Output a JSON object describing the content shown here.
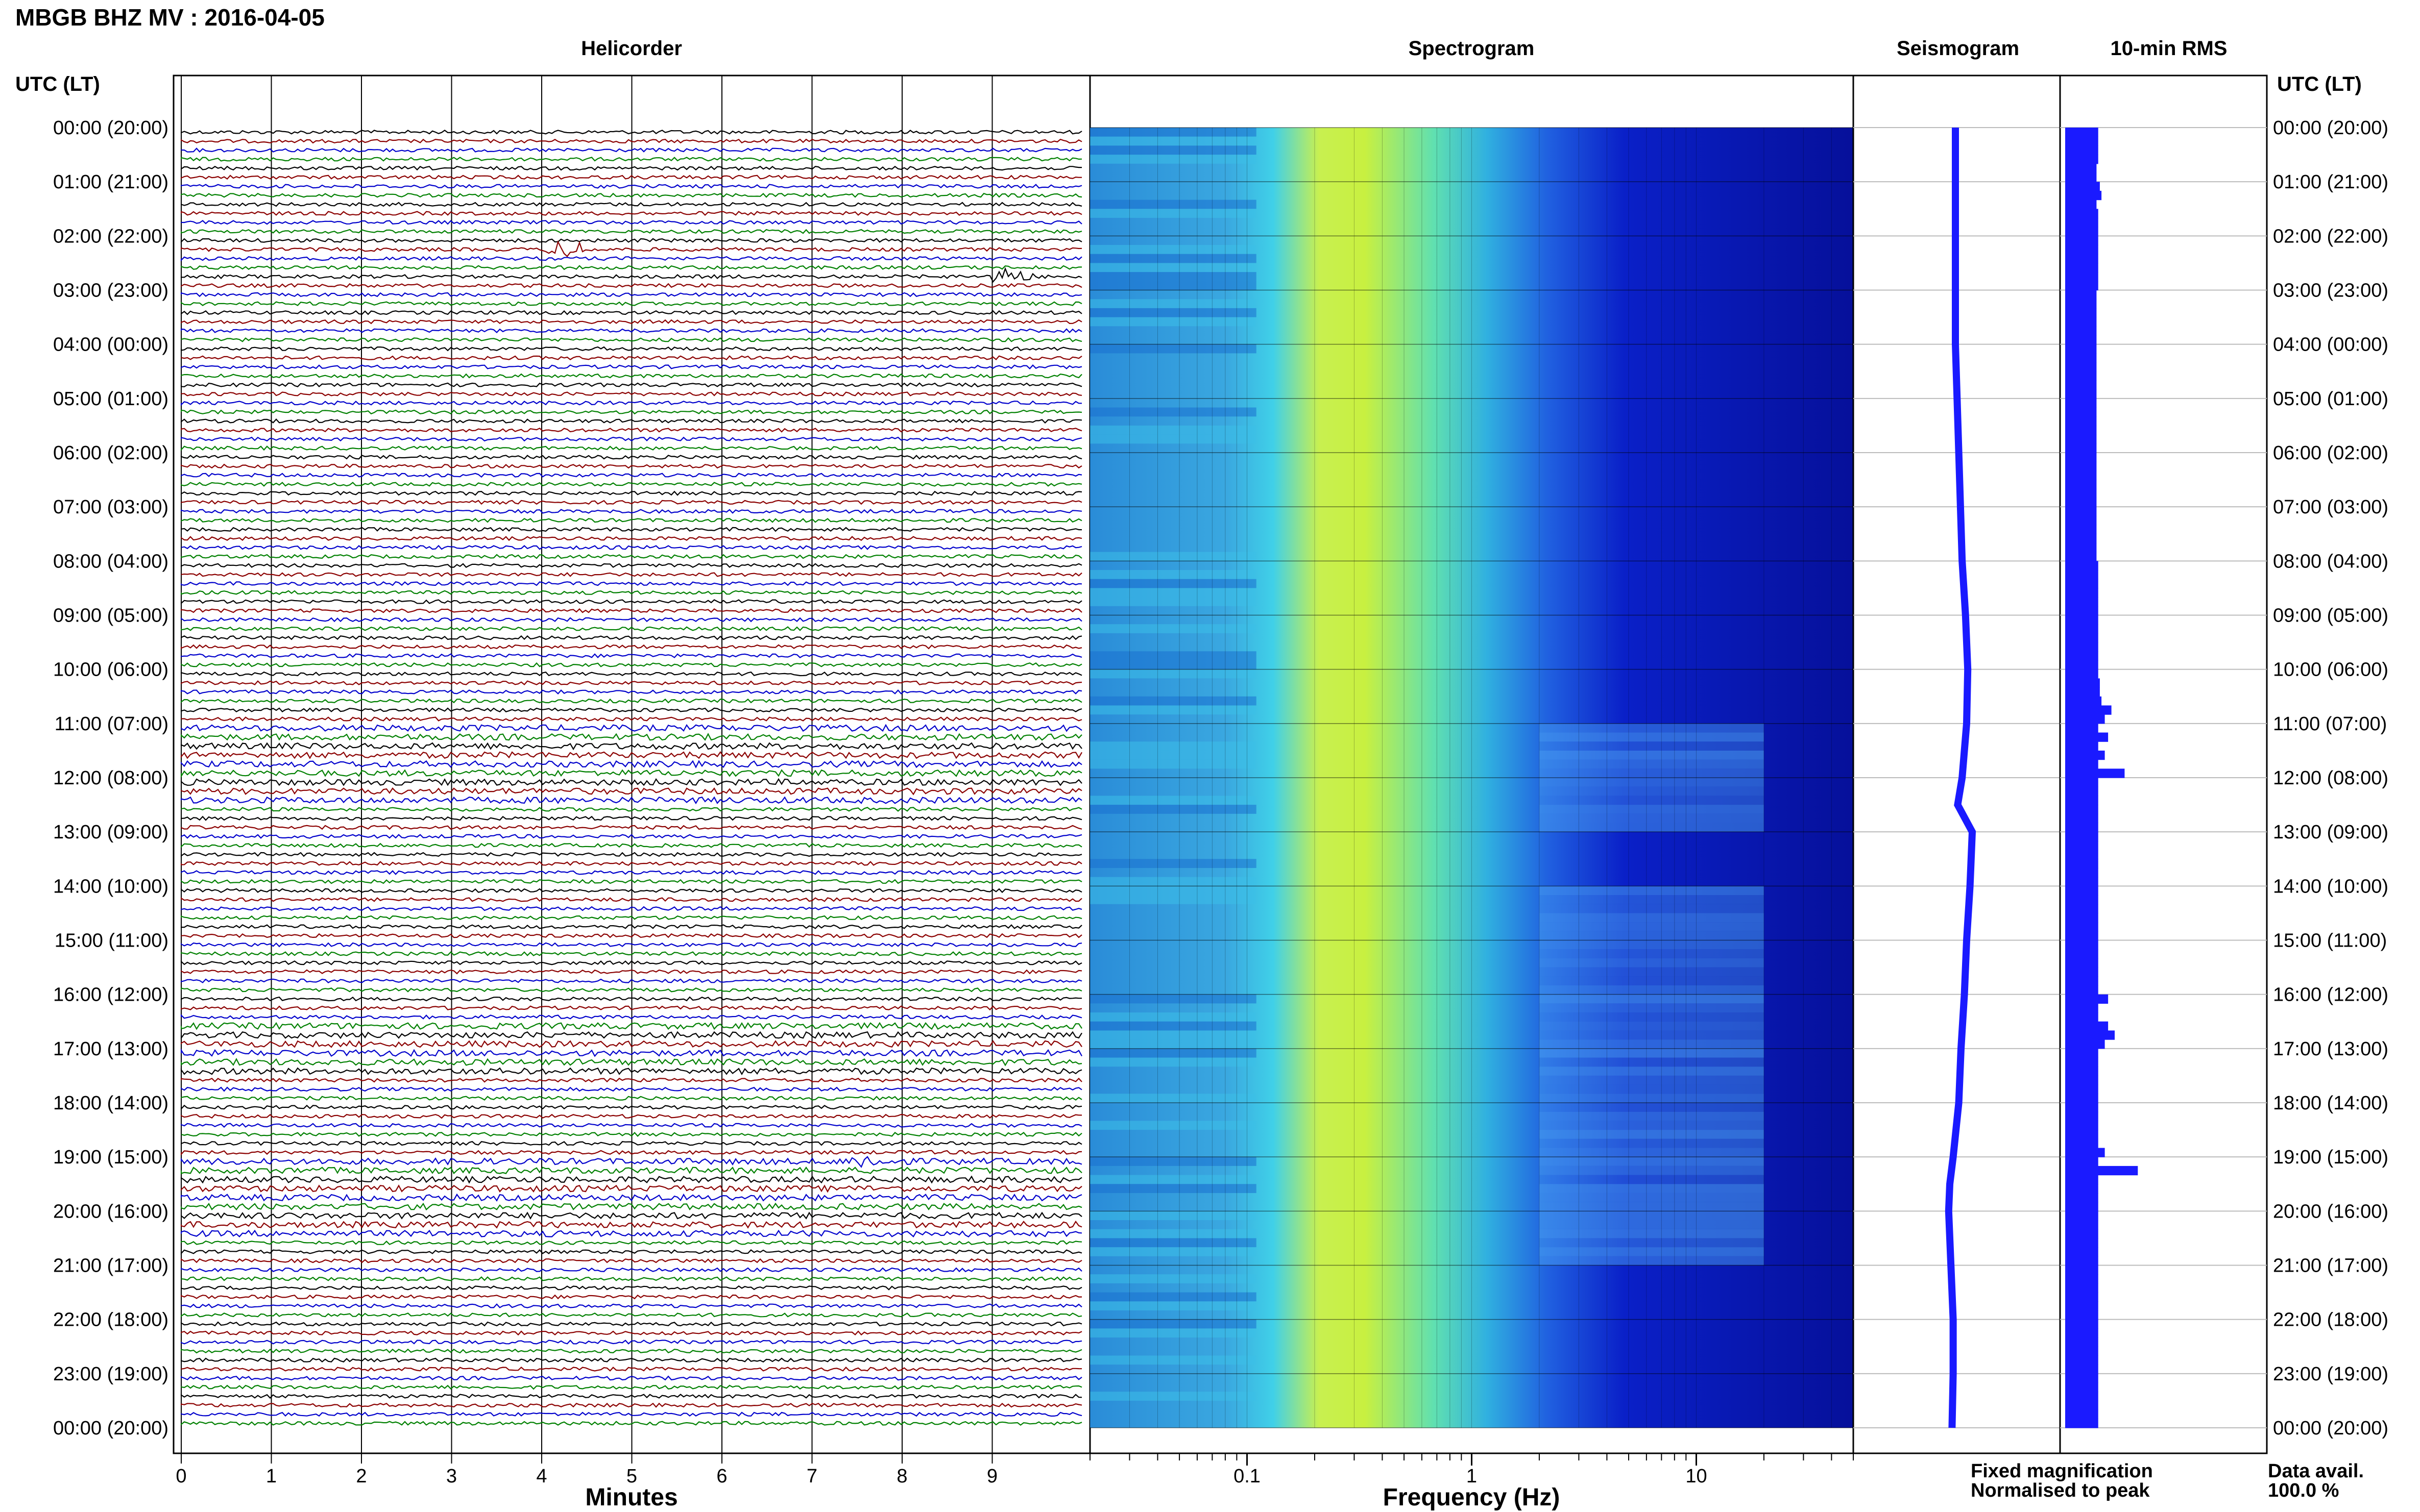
{
  "header": {
    "title": "MBGB BHZ MV : 2016-04-05",
    "left_axis_label": "UTC (LT)",
    "right_axis_label": "UTC (LT)"
  },
  "panels": {
    "helicorder": "Helicorder",
    "spectrogram": "Spectrogram",
    "seismogram": "Seismogram",
    "rms": "10-min RMS"
  },
  "footer": {
    "minutes_label": "Minutes",
    "frequency_label": "Frequency (Hz)",
    "legend_fixed": "Fixed magnification",
    "legend_normalised": "Normalised to peak",
    "data_avail_label": "Data avail.",
    "data_avail_value": "100.0 %"
  },
  "colors": {
    "trace_cycle": [
      "#000000",
      "#8b0000",
      "#0000cc",
      "#008000"
    ],
    "fixed": "#1a1aff",
    "normalised": "#ff0000",
    "seismogram": "#1a1aff",
    "rms_bar": "#1a1aff"
  },
  "chart_data": [
    {
      "type": "line",
      "name": "Helicorder",
      "x_ticks": [
        0,
        1,
        2,
        3,
        4,
        5,
        6,
        7,
        8,
        9
      ],
      "xlim": [
        0,
        10
      ],
      "xlabel": "Minutes",
      "trace_count": 144,
      "events": [
        {
          "hour": 2.1,
          "minute": 4.3,
          "amplitude": 3
        },
        {
          "hour": 2.6,
          "minute": 9.2,
          "amplitude": 3
        },
        {
          "hour": 19.0,
          "minute": 7.6,
          "amplitude": 1
        }
      ],
      "time_labels": [
        "00:00 (20:00)",
        "01:00 (21:00)",
        "02:00 (22:00)",
        "03:00 (23:00)",
        "04:00 (00:00)",
        "05:00 (01:00)",
        "06:00 (02:00)",
        "07:00 (03:00)",
        "08:00 (04:00)",
        "09:00 (05:00)",
        "10:00 (06:00)",
        "11:00 (07:00)",
        "12:00 (08:00)",
        "13:00 (09:00)",
        "14:00 (10:00)",
        "15:00 (11:00)",
        "16:00 (12:00)",
        "17:00 (13:00)",
        "18:00 (14:00)",
        "19:00 (15:00)",
        "20:00 (16:00)",
        "21:00 (17:00)",
        "22:00 (18:00)",
        "23:00 (19:00)",
        "00:00 (20:00)"
      ]
    },
    {
      "type": "heatmap",
      "name": "Spectrogram",
      "xscale": "log",
      "xlim": [
        0.02,
        50
      ],
      "x_ticks": [
        0.1,
        1,
        10
      ],
      "x_tick_labels": [
        "0.1",
        "1",
        "10"
      ],
      "xlabel": "Frequency (Hz)",
      "colormap": "blue-cyan-yellow"
    },
    {
      "type": "line",
      "name": "Seismogram",
      "hours": [
        0,
        2,
        4,
        6,
        8,
        9,
        10,
        11,
        12,
        12.5,
        13,
        14,
        15,
        16,
        17,
        18,
        19,
        19.5,
        20,
        21,
        22,
        23,
        24
      ],
      "offset": [
        0,
        0,
        0,
        0.3,
        0.6,
        0.9,
        1.1,
        1.0,
        0.6,
        0.2,
        1.5,
        1.3,
        1.0,
        0.8,
        0.5,
        0.3,
        -0.2,
        -0.5,
        -0.6,
        -0.4,
        -0.2,
        -0.2,
        -0.3
      ]
    },
    {
      "type": "bar",
      "name": "10-min RMS",
      "rms": [
        1.0,
        1.0,
        1.0,
        1.0,
        0.95,
        0.95,
        1.05,
        1.1,
        0.95,
        1.0,
        1.0,
        1.0,
        1.0,
        1.0,
        1.0,
        1.0,
        1.0,
        1.0,
        0.95,
        0.95,
        0.95,
        0.95,
        0.95,
        0.95,
        0.95,
        0.95,
        0.95,
        0.95,
        0.95,
        0.95,
        0.95,
        0.95,
        0.95,
        0.95,
        0.95,
        0.95,
        0.95,
        0.95,
        0.95,
        0.95,
        0.95,
        0.95,
        0.95,
        0.95,
        0.95,
        0.95,
        0.95,
        0.95,
        1.0,
        1.0,
        1.0,
        1.0,
        1.0,
        1.0,
        1.0,
        1.0,
        1.0,
        1.0,
        1.0,
        1.0,
        1.0,
        1.05,
        1.05,
        1.1,
        1.4,
        1.2,
        1.0,
        1.3,
        1.0,
        1.2,
        1.0,
        1.8,
        1.0,
        1.0,
        1.0,
        1.0,
        1.0,
        1.0,
        1.0,
        1.0,
        1.0,
        1.0,
        1.0,
        1.0,
        1.0,
        1.0,
        1.0,
        1.0,
        1.0,
        1.0,
        1.0,
        1.0,
        1.0,
        1.0,
        1.0,
        1.0,
        1.3,
        1.0,
        1.0,
        1.3,
        1.5,
        1.2,
        1.0,
        1.0,
        1.0,
        1.0,
        1.0,
        1.0,
        1.0,
        1.0,
        1.0,
        1.0,
        1.0,
        1.2,
        1.0,
        2.2,
        1.0,
        1.0,
        1.0,
        1.0,
        1.0,
        1.0,
        1.0,
        1.0,
        1.0,
        1.0,
        1.0,
        1.0,
        1.0,
        1.0,
        1.0,
        1.0,
        1.0,
        1.0,
        1.0,
        1.0,
        1.0,
        1.0,
        1.0,
        1.0,
        1.0,
        1.0,
        1.0,
        1.0
      ],
      "rms_max": 2.5
    }
  ]
}
